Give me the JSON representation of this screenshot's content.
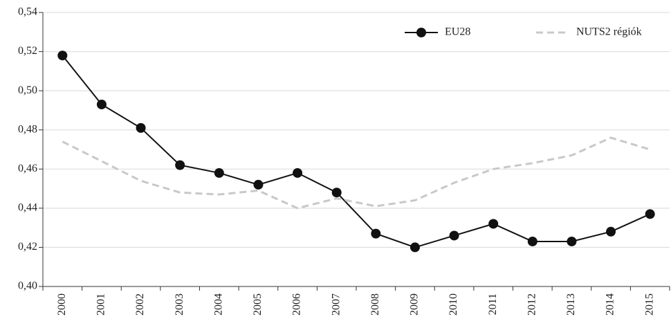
{
  "chart_data": {
    "type": "line",
    "categories": [
      "2000",
      "2001",
      "2002",
      "2003",
      "2004",
      "2005",
      "2006",
      "2007",
      "2008",
      "2009",
      "2010",
      "2011",
      "2012",
      "2013",
      "2014",
      "2015"
    ],
    "series": [
      {
        "name": "EU28",
        "color": "#111111",
        "style": "solid",
        "marker": "circle",
        "values": [
          0.518,
          0.493,
          0.481,
          0.462,
          0.458,
          0.452,
          0.458,
          0.448,
          0.427,
          0.42,
          0.426,
          0.432,
          0.423,
          0.423,
          0.428,
          0.437
        ]
      },
      {
        "name": "NUTS2 régiók",
        "color": "#c8c8c8",
        "style": "dashed",
        "marker": "none",
        "values": [
          0.474,
          0.464,
          0.454,
          0.448,
          0.447,
          0.449,
          0.44,
          0.445,
          0.441,
          0.444,
          0.453,
          0.46,
          0.463,
          0.467,
          0.476,
          0.47
        ]
      }
    ],
    "ylim": [
      0.4,
      0.54
    ],
    "yticks": [
      {
        "value": 0.4,
        "label": "0,40"
      },
      {
        "value": 0.42,
        "label": "0,42"
      },
      {
        "value": 0.44,
        "label": "0,44"
      },
      {
        "value": 0.46,
        "label": "0,46"
      },
      {
        "value": 0.48,
        "label": "0,48"
      },
      {
        "value": 0.5,
        "label": "0,50"
      },
      {
        "value": 0.52,
        "label": "0,52"
      },
      {
        "value": 0.54,
        "label": "0,54"
      }
    ],
    "grid": true,
    "legend": "top-right"
  }
}
